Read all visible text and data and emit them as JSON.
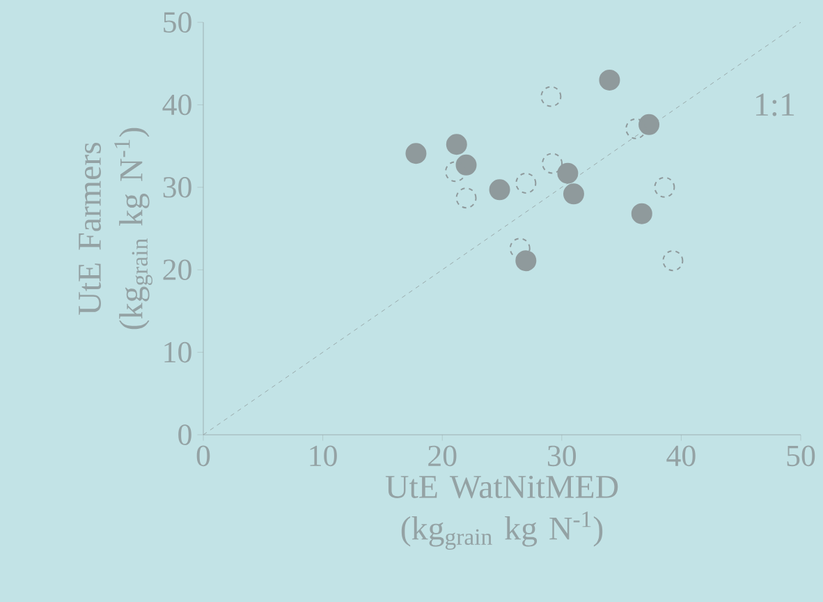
{
  "chart_data": {
    "type": "scatter",
    "xlabel": "UtE  WatNitMED (kg$_{grain}$ kg N$^{-1}$)",
    "ylabel": "UtE Farmers (kg$_{grain}$ kg N$^{-1}$)",
    "xlim": [
      0,
      50
    ],
    "ylim": [
      0,
      50
    ],
    "xticks": [
      0,
      10,
      20,
      30,
      40,
      50
    ],
    "yticks": [
      0,
      10,
      20,
      30,
      40,
      50
    ],
    "marker": "circle",
    "grid": false,
    "annotations": [
      "1:1"
    ],
    "series": [
      {
        "color": "#8f9a9c",
        "line_style": "solid",
        "x": [
          34.0,
          37.3,
          17.8,
          21.2,
          22.0,
          24.8,
          30.5,
          31.0,
          36.7,
          27.0
        ],
        "values": [
          43.0,
          37.6,
          34.1,
          35.2,
          32.7,
          29.7,
          31.7,
          29.2,
          26.8,
          21.1
        ]
      },
      {
        "color": "#8f9a9c",
        "line_style": "dashed",
        "x": [
          29.1,
          36.2,
          21.1,
          22.0,
          27.0,
          29.2,
          38.6,
          26.5,
          39.3
        ],
        "values": [
          41.0,
          37.1,
          31.9,
          28.7,
          30.5,
          32.9,
          30.0,
          22.6,
          21.1
        ]
      },
      {
        "type": "line",
        "color": "#8f9a9c",
        "line_style": "dashed",
        "marker": "none",
        "x": [
          0,
          50
        ],
        "values": [
          0,
          50
        ]
      }
    ]
  }
}
